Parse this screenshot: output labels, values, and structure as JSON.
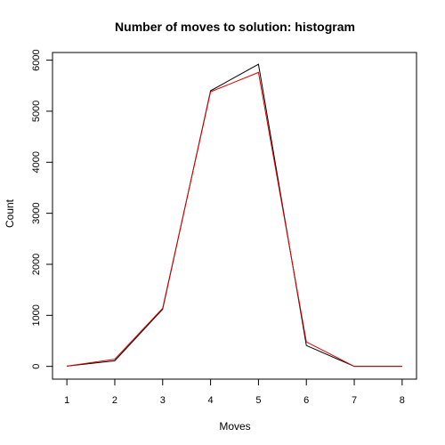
{
  "chart_data": {
    "type": "line",
    "title": "Number of moves to solution: histogram",
    "xlabel": "Moves",
    "ylabel": "Count",
    "x": [
      1,
      2,
      3,
      4,
      5,
      6,
      7,
      8
    ],
    "xlim": [
      0.7,
      8.3
    ],
    "ylim": [
      -250,
      6150
    ],
    "x_ticks": [
      1,
      2,
      3,
      4,
      5,
      6,
      7,
      8
    ],
    "y_ticks": [
      0,
      1000,
      2000,
      3000,
      4000,
      5000,
      6000
    ],
    "grid": false,
    "series": [
      {
        "color": "#000000",
        "values": [
          5,
          110,
          1120,
          5400,
          5920,
          410,
          0,
          0
        ]
      },
      {
        "color": "#dd0000",
        "values": [
          5,
          140,
          1140,
          5380,
          5760,
          480,
          0,
          0
        ]
      }
    ]
  }
}
